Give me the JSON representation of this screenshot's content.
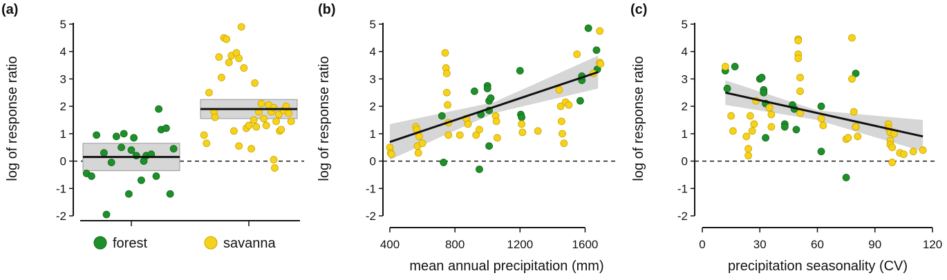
{
  "colors": {
    "forest": "#1f8f2a",
    "forest_edge": "#0f6a18",
    "savanna": "#f7d21b",
    "savanna_edge": "#c9a400",
    "ci_band": "#d6d6d6",
    "axis": "#111111"
  },
  "legend": {
    "placement": "bottom-of-panel-a",
    "items": [
      {
        "label": "forest",
        "color": "#1f8f2a"
      },
      {
        "label": "savanna",
        "color": "#f7d21b"
      }
    ]
  },
  "chart_data": [
    {
      "panel": "(a)",
      "type": "scatter",
      "subtype": "grouped-jitter-with-mean",
      "ylabel": "log of response ratio",
      "xlabel": "",
      "ylim": [
        -2,
        5
      ],
      "yticks": [
        -2,
        -1,
        0,
        1,
        2,
        3,
        4,
        5
      ],
      "zero_line": true,
      "groups": [
        {
          "name": "forest",
          "mean": 0.15,
          "ci": [
            -0.35,
            0.65
          ],
          "jitter_x": [
            -0.9,
            -0.8,
            -0.7,
            -0.55,
            -0.5,
            -0.4,
            -0.3,
            -0.2,
            -0.15,
            -0.05,
            0.0,
            0.05,
            0.1,
            0.2,
            0.25,
            0.3,
            0.4,
            0.5,
            0.55,
            0.6,
            0.7,
            0.78,
            0.85
          ],
          "y": [
            -0.45,
            -0.55,
            0.95,
            0.3,
            -1.95,
            -0.05,
            0.9,
            0.5,
            1.0,
            -1.2,
            0.4,
            0.85,
            0.2,
            -0.7,
            0.0,
            0.2,
            0.25,
            -0.55,
            1.9,
            1.15,
            1.2,
            -1.2,
            0.45
          ]
        },
        {
          "name": "savanna",
          "mean": 1.9,
          "ci": [
            1.55,
            2.25
          ],
          "jitter_x": [
            -0.9,
            -0.85,
            -0.8,
            -0.7,
            -0.68,
            -0.6,
            -0.55,
            -0.5,
            -0.45,
            -0.4,
            -0.35,
            -0.3,
            -0.25,
            -0.2,
            -0.2,
            -0.15,
            -0.1,
            -0.05,
            0.0,
            0.05,
            0.1,
            0.12,
            0.15,
            0.2,
            0.25,
            0.3,
            0.35,
            0.4,
            0.45,
            0.5,
            0.55,
            0.6,
            0.62,
            0.65,
            0.7,
            0.75,
            0.8,
            0.85,
            0.5,
            0.52
          ],
          "y": [
            0.95,
            0.65,
            2.5,
            1.8,
            1.6,
            3.8,
            3.05,
            4.5,
            4.45,
            3.6,
            3.85,
            1.1,
            3.95,
            3.75,
            0.55,
            4.9,
            3.4,
            1.2,
            1.3,
            0.45,
            1.5,
            2.85,
            1.25,
            1.8,
            2.1,
            1.55,
            1.3,
            2.05,
            1.8,
            1.95,
            1.45,
            1.7,
            1.1,
            1.15,
            1.85,
            2.0,
            1.75,
            1.45,
            0.05,
            -0.25
          ]
        }
      ],
      "categories": [
        "forest",
        "savanna"
      ]
    },
    {
      "panel": "(b)",
      "type": "scatter",
      "xlabel": "mean annual precipitation (mm)",
      "ylabel": "log of response ratio",
      "xlim": [
        400,
        1700
      ],
      "ylim": [
        -2,
        5
      ],
      "xticks": [
        400,
        800,
        1200,
        1600
      ],
      "yticks": [
        -2,
        -1,
        0,
        1,
        2,
        3,
        4,
        5
      ],
      "zero_line": true,
      "fit_line": {
        "x": [
          400,
          1680
        ],
        "y": [
          0.7,
          3.25
        ]
      },
      "ci_band": {
        "x": [
          400,
          1040,
          1680
        ],
        "lower": [
          0.05,
          1.75,
          2.65
        ],
        "upper": [
          1.35,
          2.15,
          3.85
        ]
      },
      "series": [
        {
          "name": "forest",
          "x": [
            720,
            730,
            920,
            950,
            960,
            1000,
            1000,
            1010,
            1010,
            1010,
            1020,
            1200,
            1205,
            1210,
            1570,
            1580,
            1580,
            1620,
            1670,
            1675
          ],
          "y": [
            1.65,
            -0.05,
            2.55,
            -0.3,
            1.7,
            2.75,
            2.65,
            2.2,
            1.85,
            0.55,
            2.3,
            3.3,
            1.7,
            1.6,
            2.2,
            2.95,
            3.1,
            4.85,
            4.05,
            3.35
          ]
        },
        {
          "name": "savanna",
          "x": [
            400,
            405,
            410,
            560,
            565,
            570,
            575,
            580,
            600,
            740,
            745,
            750,
            750,
            755,
            760,
            760,
            830,
            870,
            880,
            930,
            950,
            1050,
            1055,
            1060,
            1210,
            1215,
            1310,
            1440,
            1450,
            1455,
            1460,
            1470,
            1480,
            1500,
            1550,
            1650,
            1690,
            1690,
            1695
          ],
          "y": [
            0.5,
            0.3,
            0.25,
            1.25,
            1.15,
            0.55,
            0.3,
            0.9,
            0.65,
            3.95,
            3.4,
            3.2,
            2.5,
            2.05,
            1.4,
            0.95,
            0.95,
            1.55,
            1.35,
            0.95,
            1.15,
            1.65,
            1.45,
            0.85,
            1.35,
            1.05,
            1.1,
            2.6,
            2.0,
            1.45,
            1.0,
            0.65,
            2.15,
            2.05,
            3.9,
            3.2,
            4.75,
            3.6,
            3.55
          ]
        }
      ]
    },
    {
      "panel": "(c)",
      "type": "scatter",
      "xlabel": "precipitation seasonality (CV)",
      "ylabel": "log of response ratio",
      "xlim": [
        0,
        120
      ],
      "ylim": [
        -2,
        5
      ],
      "xticks": [
        0,
        30,
        60,
        90,
        120
      ],
      "yticks": [
        -2,
        -1,
        0,
        1,
        2,
        3,
        4,
        5
      ],
      "zero_line": true,
      "fit_line": {
        "x": [
          12,
          115
        ],
        "y": [
          2.5,
          0.9
        ]
      },
      "ci_band": {
        "x": [
          12,
          60,
          115
        ],
        "lower": [
          2.05,
          1.5,
          0.35
        ],
        "upper": [
          2.95,
          1.85,
          1.5
        ]
      },
      "series": [
        {
          "name": "forest",
          "x": [
            12,
            13,
            17,
            30,
            31,
            32,
            32,
            33,
            33,
            43,
            43,
            47,
            48,
            49,
            62,
            62,
            75,
            80,
            80
          ],
          "y": [
            3.3,
            2.65,
            3.45,
            3.0,
            3.05,
            2.6,
            2.5,
            2.1,
            0.85,
            1.35,
            1.25,
            2.05,
            1.9,
            1.15,
            2.0,
            0.35,
            -0.6,
            1.25,
            3.2
          ],
          "note": "approximate"
        },
        {
          "name": "savanna",
          "x": [
            12,
            15,
            16,
            23,
            24,
            24,
            25,
            26,
            27,
            28,
            35,
            36,
            36,
            50,
            50,
            50,
            50,
            51,
            51,
            51,
            62,
            63,
            75,
            76,
            78,
            78,
            79,
            80,
            81,
            97,
            97,
            98,
            98,
            98,
            99,
            99,
            100,
            103,
            105,
            110,
            115
          ],
          "y": [
            3.45,
            1.65,
            1.1,
            0.9,
            0.45,
            0.2,
            1.65,
            1.1,
            1.35,
            2.2,
            1.95,
            1.7,
            1.25,
            4.45,
            4.4,
            3.9,
            3.75,
            3.05,
            2.55,
            1.75,
            1.55,
            1.3,
            0.8,
            0.85,
            4.5,
            3.0,
            1.8,
            1.25,
            0.9,
            1.35,
            1.2,
            1.05,
            0.75,
            0.6,
            0.5,
            -0.05,
            1.0,
            0.3,
            0.25,
            0.35,
            0.4
          ]
        }
      ]
    }
  ]
}
